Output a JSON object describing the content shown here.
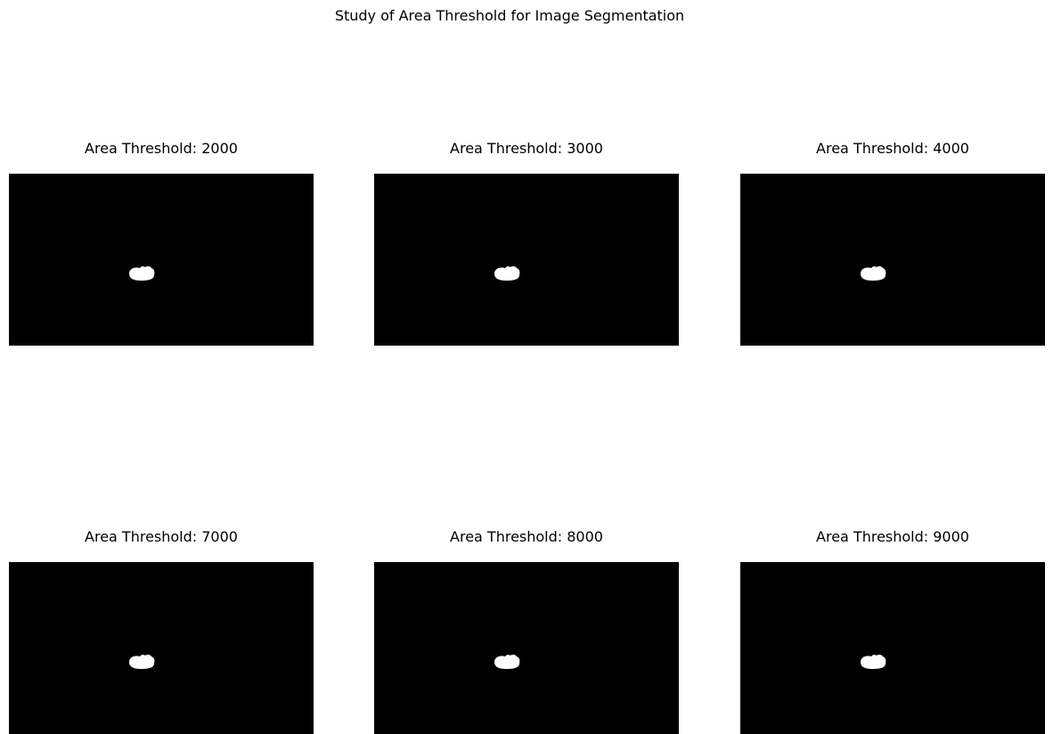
{
  "figure": {
    "title": "Study of Area Threshold for Image Segmentation"
  },
  "panels": [
    {
      "title": "Area Threshold: 2000",
      "threshold": 2000
    },
    {
      "title": "Area Threshold: 3000",
      "threshold": 3000
    },
    {
      "title": "Area Threshold: 4000",
      "threshold": 4000
    },
    {
      "title": "Area Threshold: 7000",
      "threshold": 7000
    },
    {
      "title": "Area Threshold: 8000",
      "threshold": 8000
    },
    {
      "title": "Area Threshold: 9000",
      "threshold": 9000
    }
  ],
  "colors": {
    "background": "#000000",
    "foreground": "#ffffff"
  }
}
